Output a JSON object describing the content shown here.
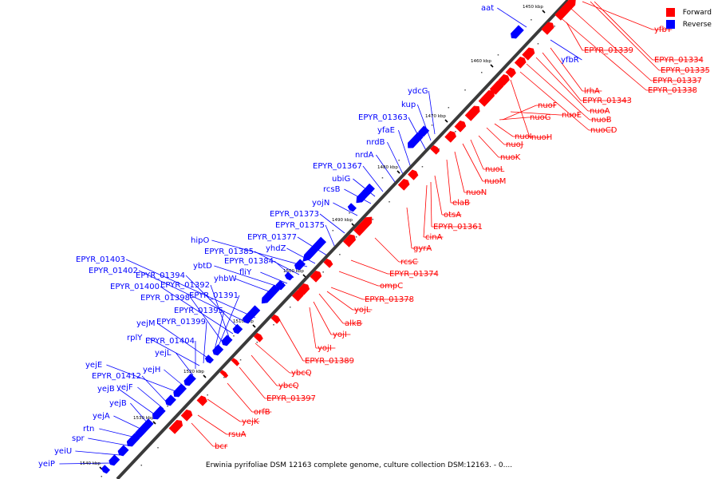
{
  "legend": {
    "forward": {
      "label": "Forward",
      "color": "#ff0000"
    },
    "reverse": {
      "label": "Reverse",
      "color": "#0000ff"
    }
  },
  "caption": "Erwinia pyrifoliae DSM 12163 complete genome, culture collection DSM:12163. - 0....",
  "ticks": [
    "1450 kbp",
    "1460 kbp",
    "1470 kbp",
    "1480 kbp",
    "1490 kbp",
    "1500 kbp",
    "1510 kbp",
    "1520 kbp",
    "1530 kbp",
    "1540 kbp"
  ],
  "reverse_labels": [
    "aat",
    "yfbR",
    "ydcG",
    "kup",
    "EPYR_01363",
    "yfaE",
    "nrdB",
    "nrdA",
    "EPYR_01367",
    "ubiG",
    "rcsB",
    "yojN",
    "EPYR_01373",
    "EPYR_01375",
    "EPYR_01377",
    "yhdZ",
    "hipO",
    "EPYR_01385",
    "EPYR_01384",
    "fliY",
    "ybtD",
    "yhbW",
    "EPYR_01403",
    "EPYR_01402",
    "EPYR_01394",
    "EPYR_01400",
    "EPYR_01392",
    "EPYR_01398",
    "EPYR_01391",
    "EPYR_01395",
    "yejM",
    "EPYR_01399",
    "rplY",
    "EPYR_01404",
    "yejL",
    "yejH",
    "yejE",
    "EPYR_01412",
    "yejF",
    "yejB",
    "yejB",
    "yejA",
    "rtn",
    "spr",
    "yeiU",
    "yeiP"
  ],
  "forward_labels": [
    "yfbT",
    "EPYR_01334",
    "EPYR_01339",
    "EPYR_01335",
    "EPYR_01337",
    "EPYR_01338",
    "lrhA",
    "EPYR_01343",
    "nuoA",
    "nuoF",
    "nuoE",
    "nuoB",
    "nuoG",
    "nuoCD",
    "nuoI",
    "nuoH",
    "nuoJ",
    "nuoK",
    "nuoL",
    "nuoM",
    "nuoN",
    "elaB",
    "otsA",
    "EPYR_01361",
    "cinA",
    "gyrA",
    "rcsC",
    "EPYR_01374",
    "ompC",
    "EPYR_01378",
    "yojL",
    "alkB",
    "yojI",
    "yojI",
    "EPYR_01389",
    "ybcQ",
    "ybcQ",
    "EPYR_01397",
    "orfB",
    "yejK",
    "rsuA",
    "bcr"
  ]
}
